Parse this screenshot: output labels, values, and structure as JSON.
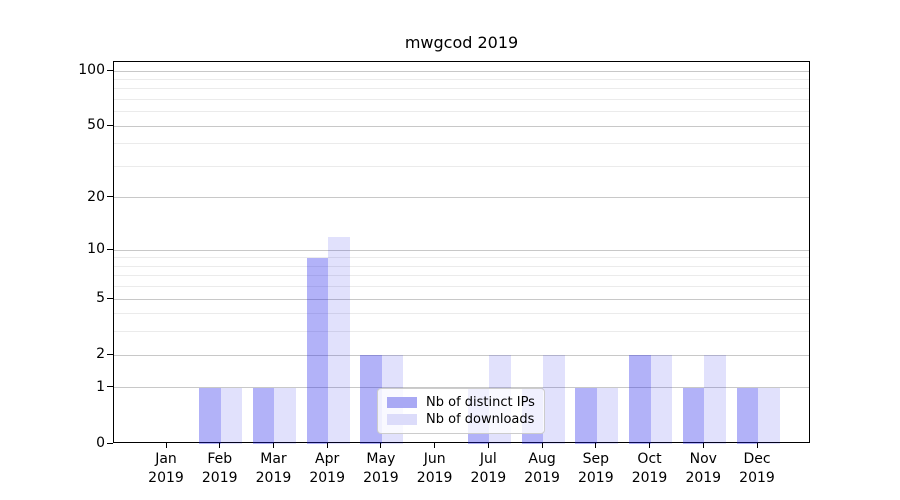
{
  "title": "mwgcod 2019",
  "legend": {
    "items": [
      {
        "label": "Nb of distinct IPs",
        "series_index": 0
      },
      {
        "label": "Nb of downloads",
        "series_index": 1
      }
    ]
  },
  "colors": {
    "series_fills": [
      "rgba(30,30,235,0.34)",
      "rgba(30,30,235,0.135)"
    ],
    "series_solids": [
      "#a9a9f4",
      "#dcdcfa"
    ],
    "grid_major": "#c8c8c8",
    "grid_minor": "#ebebeb",
    "axis": "#000000",
    "legend_border": "#cccccc"
  },
  "y_axis": {
    "major_ticks": [
      0,
      1,
      2,
      5,
      10,
      20,
      50,
      100
    ],
    "minor_ticks": [
      3,
      4,
      6,
      7,
      8,
      9,
      30,
      40,
      60,
      70,
      80,
      90
    ]
  },
  "chart_data": {
    "type": "bar",
    "title": "mwgcod 2019",
    "categories": [
      "Jan 2019",
      "Feb 2019",
      "Mar 2019",
      "Apr 2019",
      "May 2019",
      "Jun 2019",
      "Jul 2019",
      "Aug 2019",
      "Sep 2019",
      "Oct 2019",
      "Nov 2019",
      "Dec 2019"
    ],
    "series": [
      {
        "name": "Nb of distinct IPs",
        "values": [
          0,
          1,
          1,
          9,
          2,
          0,
          1,
          1,
          1,
          2,
          1,
          1
        ]
      },
      {
        "name": "Nb of downloads",
        "values": [
          0,
          1,
          1,
          12,
          2,
          0,
          2,
          2,
          1,
          2,
          2,
          1
        ]
      }
    ],
    "xlabel": "",
    "ylabel": "",
    "y_scale": "log1p",
    "y_ticks": [
      0,
      1,
      2,
      5,
      10,
      20,
      50,
      100
    ],
    "ylim": [
      0,
      112
    ],
    "grid": "both-horizontal",
    "legend_position": "lower-center-inside"
  }
}
